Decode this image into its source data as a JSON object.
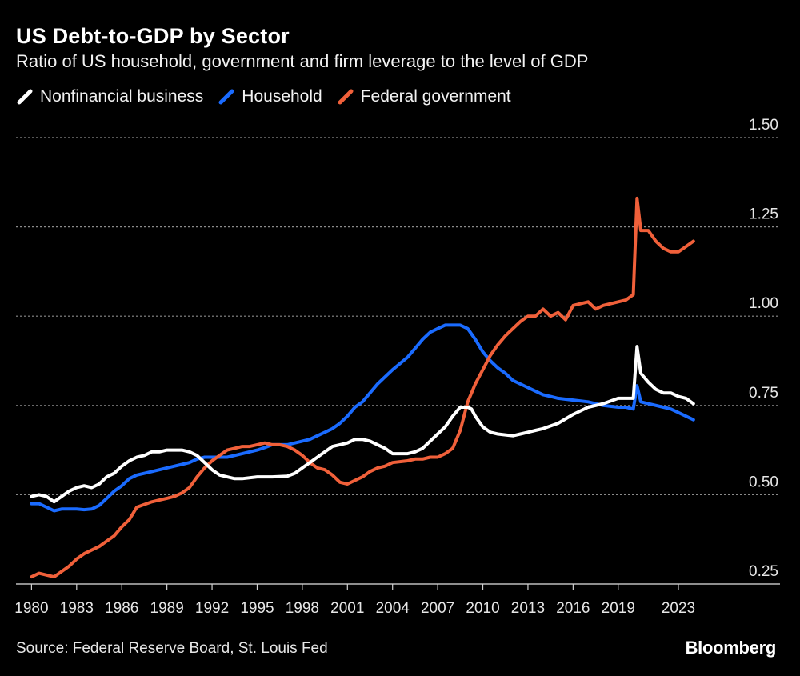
{
  "title": "US Debt-to-GDP by Sector",
  "subtitle": "Ratio of US household, government and firm leverage to the level of GDP",
  "source": "Source: Federal Reserve Board, St. Louis Fed",
  "brand": "Bloomberg",
  "chart_data": {
    "type": "line",
    "title": "US Debt-to-GDP by Sector",
    "xlabel": "",
    "ylabel": "",
    "xlim": [
      1979.5,
      2025.5
    ],
    "ylim": [
      0.25,
      1.5
    ],
    "y_ticks": [
      "0.25",
      "0.50",
      "0.75",
      "1.00",
      "1.25",
      "1.50"
    ],
    "x_ticks": [
      "1980",
      "1983",
      "1986",
      "1989",
      "1992",
      "1995",
      "1998",
      "2001",
      "2004",
      "2007",
      "2010",
      "2013",
      "2016",
      "2019",
      "2023"
    ],
    "grid": true,
    "legend_position": "top-left",
    "series": [
      {
        "name": "Nonfinancial business",
        "color": "#ffffff",
        "x": [
          1980,
          1980.5,
          1981,
          1981.5,
          1982,
          1982.5,
          1983,
          1983.5,
          1984,
          1984.5,
          1985,
          1985.5,
          1986,
          1986.5,
          1987,
          1987.5,
          1988,
          1988.5,
          1989,
          1989.5,
          1990,
          1990.5,
          1991,
          1991.5,
          1992,
          1992.5,
          1993,
          1993.5,
          1994,
          1995,
          1995.5,
          1996,
          1997,
          1997.5,
          1998,
          1998.5,
          1999,
          1999.5,
          2000,
          2000.5,
          2001,
          2001.5,
          2002,
          2002.5,
          2003,
          2003.5,
          2004,
          2005,
          2005.5,
          2006,
          2006.5,
          2007,
          2007.5,
          2008,
          2008.5,
          2009,
          2009.25,
          2009.5,
          2010,
          2010.5,
          2011,
          2012,
          2012.5,
          2013,
          2013.5,
          2014,
          2015,
          2016,
          2016.5,
          2017,
          2018,
          2019,
          2019.5,
          2020,
          2020.25,
          2020.5,
          2021,
          2021.5,
          2022,
          2022.5,
          2023,
          2023.5,
          2024
        ],
        "values": [
          0.495,
          0.5,
          0.495,
          0.48,
          0.495,
          0.51,
          0.52,
          0.525,
          0.52,
          0.53,
          0.55,
          0.56,
          0.58,
          0.595,
          0.605,
          0.61,
          0.62,
          0.62,
          0.625,
          0.625,
          0.625,
          0.62,
          0.61,
          0.59,
          0.57,
          0.555,
          0.55,
          0.545,
          0.545,
          0.55,
          0.55,
          0.55,
          0.552,
          0.56,
          0.575,
          0.59,
          0.605,
          0.62,
          0.635,
          0.64,
          0.645,
          0.655,
          0.655,
          0.65,
          0.64,
          0.63,
          0.615,
          0.615,
          0.62,
          0.63,
          0.65,
          0.67,
          0.69,
          0.72,
          0.745,
          0.745,
          0.74,
          0.72,
          0.69,
          0.675,
          0.67,
          0.665,
          0.67,
          0.675,
          0.68,
          0.685,
          0.7,
          0.725,
          0.735,
          0.745,
          0.755,
          0.77,
          0.77,
          0.77,
          0.915,
          0.84,
          0.815,
          0.795,
          0.785,
          0.785,
          0.775,
          0.77,
          0.755
        ]
      },
      {
        "name": "Household",
        "color": "#1a6bff",
        "x": [
          1980,
          1980.5,
          1981,
          1981.5,
          1982,
          1982.5,
          1983,
          1983.5,
          1984,
          1984.5,
          1985,
          1985.5,
          1986,
          1986.5,
          1987,
          1988,
          1988.5,
          1989,
          1989.5,
          1990,
          1990.5,
          1991,
          1991.5,
          1992,
          1992.5,
          1993,
          1993.5,
          1994,
          1994.5,
          1995,
          1995.5,
          1996,
          1997,
          1997.5,
          1998,
          1998.5,
          1999,
          1999.5,
          2000,
          2000.5,
          2001,
          2001.5,
          2002,
          2002.5,
          2003,
          2003.5,
          2004,
          2005,
          2005.5,
          2006,
          2006.5,
          2007,
          2007.5,
          2008,
          2008.5,
          2009,
          2009.5,
          2010,
          2010.5,
          2011,
          2011.5,
          2012,
          2012.5,
          2013,
          2013.5,
          2014,
          2014.5,
          2015,
          2016,
          2017,
          2018,
          2019,
          2019.5,
          2020,
          2020.25,
          2020.5,
          2021,
          2022,
          2022.5,
          2023,
          2023.5,
          2024
        ],
        "values": [
          0.475,
          0.475,
          0.465,
          0.455,
          0.46,
          0.46,
          0.46,
          0.458,
          0.46,
          0.47,
          0.49,
          0.51,
          0.525,
          0.545,
          0.555,
          0.565,
          0.57,
          0.575,
          0.58,
          0.585,
          0.59,
          0.6,
          0.605,
          0.605,
          0.605,
          0.605,
          0.61,
          0.615,
          0.62,
          0.625,
          0.632,
          0.64,
          0.64,
          0.645,
          0.65,
          0.655,
          0.665,
          0.675,
          0.685,
          0.7,
          0.72,
          0.745,
          0.76,
          0.785,
          0.81,
          0.83,
          0.85,
          0.885,
          0.91,
          0.935,
          0.955,
          0.965,
          0.975,
          0.975,
          0.975,
          0.965,
          0.935,
          0.9,
          0.875,
          0.855,
          0.84,
          0.82,
          0.81,
          0.8,
          0.79,
          0.78,
          0.775,
          0.77,
          0.765,
          0.76,
          0.75,
          0.745,
          0.745,
          0.74,
          0.805,
          0.76,
          0.755,
          0.745,
          0.74,
          0.73,
          0.72,
          0.71
        ]
      },
      {
        "name": "Federal government",
        "color": "#f0603a",
        "x": [
          1980,
          1980.5,
          1981,
          1981.5,
          1982,
          1982.5,
          1983,
          1983.5,
          1984,
          1984.5,
          1985,
          1985.5,
          1986,
          1986.5,
          1987,
          1988,
          1988.5,
          1989,
          1989.5,
          1990,
          1990.5,
          1991,
          1991.5,
          1992,
          1992.5,
          1993,
          1993.5,
          1994,
          1994.5,
          1995,
          1995.5,
          1996,
          1996.5,
          1997,
          1997.5,
          1998,
          1998.5,
          1999,
          1999.5,
          2000,
          2000.5,
          2001,
          2001.5,
          2002,
          2002.5,
          2003,
          2003.5,
          2004,
          2005,
          2005.5,
          2006,
          2006.5,
          2007,
          2007.5,
          2008,
          2008.5,
          2009,
          2009.5,
          2010,
          2010.5,
          2011,
          2011.5,
          2012,
          2012.5,
          2013,
          2013.5,
          2014,
          2014.5,
          2015,
          2015.5,
          2016,
          2016.5,
          2017,
          2017.5,
          2018,
          2018.5,
          2019,
          2019.5,
          2020,
          2020.25,
          2020.5,
          2021,
          2021.5,
          2022,
          2022.5,
          2023,
          2023.5,
          2024
        ],
        "values": [
          0.27,
          0.28,
          0.275,
          0.27,
          0.285,
          0.3,
          0.32,
          0.335,
          0.345,
          0.355,
          0.37,
          0.385,
          0.41,
          0.43,
          0.465,
          0.48,
          0.485,
          0.49,
          0.495,
          0.505,
          0.52,
          0.55,
          0.575,
          0.595,
          0.61,
          0.625,
          0.63,
          0.635,
          0.635,
          0.64,
          0.645,
          0.64,
          0.64,
          0.635,
          0.625,
          0.61,
          0.59,
          0.575,
          0.57,
          0.555,
          0.535,
          0.53,
          0.54,
          0.55,
          0.565,
          0.575,
          0.58,
          0.59,
          0.595,
          0.6,
          0.6,
          0.605,
          0.605,
          0.615,
          0.63,
          0.68,
          0.76,
          0.81,
          0.85,
          0.89,
          0.92,
          0.945,
          0.965,
          0.985,
          1.0,
          1.0,
          1.02,
          1.0,
          1.01,
          0.99,
          1.03,
          1.035,
          1.04,
          1.02,
          1.03,
          1.035,
          1.04,
          1.045,
          1.06,
          1.33,
          1.24,
          1.24,
          1.21,
          1.19,
          1.18,
          1.18,
          1.195,
          1.21
        ]
      }
    ]
  }
}
